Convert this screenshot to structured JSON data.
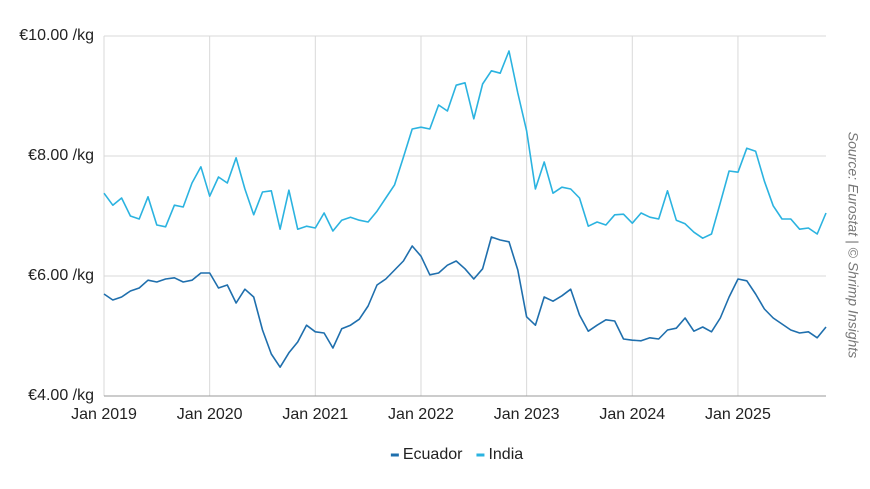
{
  "chart_data": {
    "type": "line",
    "source": "Source: Eurostat | © Shrimp Insights",
    "categories": [
      "Jan 2019",
      null,
      null,
      null,
      null,
      null,
      null,
      null,
      null,
      null,
      null,
      null,
      "Jan 2020",
      null,
      null,
      null,
      null,
      null,
      null,
      null,
      null,
      null,
      null,
      null,
      "Jan 2021",
      null,
      null,
      null,
      null,
      null,
      null,
      null,
      null,
      null,
      null,
      null,
      "Jan 2022",
      null,
      null,
      null,
      null,
      null,
      null,
      null,
      null,
      null,
      null,
      null,
      "Jan 2023",
      null,
      null,
      null,
      null,
      null,
      null,
      null,
      null,
      null,
      null,
      null,
      "Jan 2024",
      null,
      null,
      null,
      null,
      null,
      null,
      null,
      null,
      null,
      null,
      null,
      "Jan 2025",
      null,
      null,
      null,
      null,
      null,
      null,
      null,
      null,
      null,
      null
    ],
    "series": [
      {
        "name": "Ecuador",
        "color": "#1f6fad",
        "values": [
          5.7,
          5.6,
          5.65,
          5.75,
          5.8,
          5.93,
          5.9,
          5.95,
          5.97,
          5.9,
          5.93,
          6.05,
          6.05,
          5.8,
          5.85,
          5.55,
          5.78,
          5.65,
          5.1,
          4.7,
          4.48,
          4.72,
          4.9,
          5.18,
          5.07,
          5.05,
          4.8,
          5.12,
          5.18,
          5.28,
          5.5,
          5.85,
          5.95,
          6.1,
          6.25,
          6.5,
          6.33,
          6.02,
          6.05,
          6.18,
          6.25,
          6.12,
          5.95,
          6.12,
          6.65,
          6.6,
          6.57,
          6.1,
          5.32,
          5.18,
          5.65,
          5.58,
          5.67,
          5.78,
          5.35,
          5.08,
          5.18,
          5.27,
          5.25,
          4.95,
          4.93,
          4.92,
          4.97,
          4.95,
          5.1,
          5.13,
          5.3,
          5.08,
          5.15,
          5.07,
          5.3,
          5.65,
          5.95,
          5.92,
          5.7,
          5.45,
          5.3,
          5.2,
          5.1,
          5.05,
          5.07,
          4.97,
          5.15
        ]
      },
      {
        "name": "India",
        "color": "#2bb3e0",
        "values": [
          7.38,
          7.18,
          7.3,
          7.0,
          6.95,
          7.32,
          6.85,
          6.82,
          7.18,
          7.15,
          7.55,
          7.82,
          7.33,
          7.65,
          7.55,
          7.97,
          7.45,
          7.02,
          7.4,
          7.42,
          6.78,
          7.43,
          6.78,
          6.83,
          6.8,
          7.05,
          6.75,
          6.93,
          6.98,
          6.93,
          6.9,
          7.08,
          7.3,
          7.52,
          7.98,
          8.45,
          8.48,
          8.45,
          8.85,
          8.75,
          9.18,
          9.22,
          8.62,
          9.2,
          9.42,
          9.38,
          9.75,
          9.05,
          8.42,
          7.45,
          7.9,
          7.38,
          7.48,
          7.45,
          7.3,
          6.83,
          6.9,
          6.85,
          7.02,
          7.03,
          6.88,
          7.05,
          6.98,
          6.95,
          7.42,
          6.93,
          6.87,
          6.73,
          6.63,
          6.7,
          7.22,
          7.75,
          7.73,
          8.13,
          8.08,
          7.58,
          7.17,
          6.95,
          6.95,
          6.78,
          6.8,
          6.7,
          7.05
        ]
      }
    ],
    "ylim": [
      4,
      10
    ],
    "yticks": [
      {
        "value": 4,
        "label": "€4.00 /kg"
      },
      {
        "value": 6,
        "label": "€6.00 /kg"
      },
      {
        "value": 8,
        "label": "€8.00 /kg"
      },
      {
        "value": 10,
        "label": "€10.00 /kg"
      }
    ],
    "grid": true,
    "legend": "bottom"
  }
}
